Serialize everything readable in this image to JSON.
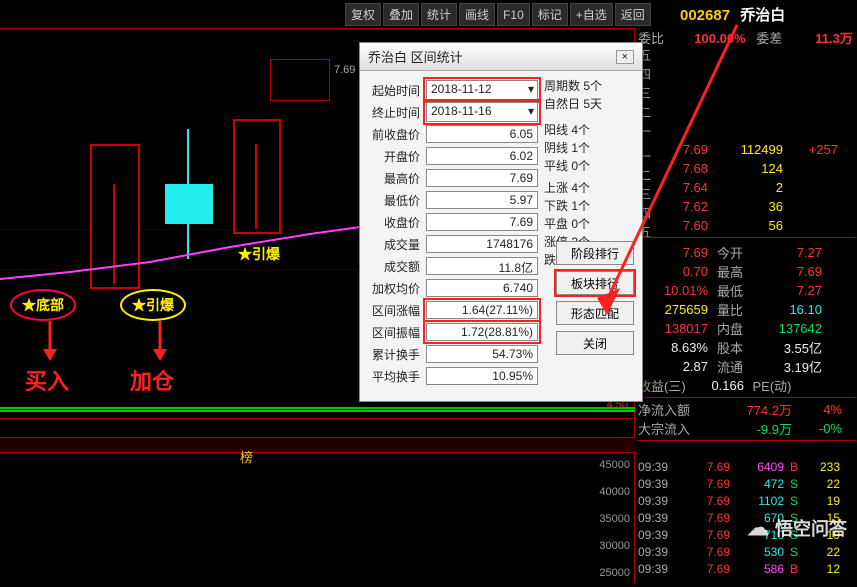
{
  "toolbar": {
    "items": [
      "复权",
      "叠加",
      "统计",
      "画线",
      "F10",
      "标记",
      "+自选",
      "返回"
    ]
  },
  "stock": {
    "code": "002687",
    "name": "乔治白"
  },
  "ratio": {
    "weibi_label": "委比",
    "weibi_val": "100.00%",
    "weicha_label": "委差",
    "weicha_val": "11.3万"
  },
  "chart": {
    "price_tag": "7.69",
    "annot_bottom": "★底部",
    "annot_ignite": "★引爆",
    "annot_ignite2": "★引爆",
    "buy": "买入",
    "add": "加仓",
    "right_price": "4.50",
    "bang": "榜"
  },
  "lower_scale": [
    "45000",
    "40000",
    "35000",
    "30000",
    "25000"
  ],
  "dialog": {
    "title": "乔治白 区间统计",
    "rows": {
      "start_label": "起始时间",
      "start_val": "2018-11-12",
      "end_label": "终止时间",
      "end_val": "2018-11-16",
      "prev_label": "前收盘价",
      "prev_val": "6.05",
      "open_label": "开盘价",
      "open_val": "6.02",
      "high_label": "最高价",
      "high_val": "7.69",
      "low_label": "最低价",
      "low_val": "5.97",
      "close_label": "收盘价",
      "close_val": "7.69",
      "vol_label": "成交量",
      "vol_val": "1748176",
      "amt_label": "成交额",
      "amt_val": "11.8亿",
      "avg_label": "加权均价",
      "avg_val": "6.740",
      "range_label": "区间涨幅",
      "range_val": "1.64(27.11%)",
      "amp_label": "区间振幅",
      "amp_val": "1.72(28.81%)",
      "turn_label": "累计换手",
      "turn_val": "54.73%",
      "avgturn_label": "平均换手",
      "avgturn_val": "10.95%"
    },
    "side": {
      "cycle": "周期数 5个",
      "days": "自然日 5天",
      "yang": "阳线 4个",
      "yin": "阴线 1个",
      "ping": "平线 0个",
      "up": "上涨 4个",
      "down": "下跌 1个",
      "flat": "平盘 0个",
      "limup": "涨停 3个",
      "limdn": "跌    0个"
    },
    "buttons": {
      "stage": "阶段排行",
      "block": "板块排行",
      "pattern": "形态匹配",
      "close": "关闭"
    }
  },
  "level5_labels": [
    "五",
    "四",
    "三",
    "二",
    "一",
    "一",
    "二",
    "三",
    "四",
    "五"
  ],
  "asks": [
    {
      "p": "7.69",
      "v": "112499",
      "chg": "+257"
    },
    {
      "p": "7.68",
      "v": "124",
      "chg": ""
    },
    {
      "p": "7.64",
      "v": "2",
      "chg": ""
    },
    {
      "p": "7.62",
      "v": "36",
      "chg": ""
    },
    {
      "p": "7.60",
      "v": "56",
      "chg": ""
    }
  ],
  "summary": {
    "r1": {
      "a": "7.69",
      "al": "今开",
      "b": "7.27"
    },
    "r2": {
      "a": "0.70",
      "al": "最高",
      "b": "7.69"
    },
    "r3": {
      "a": "10.01%",
      "al": "最低",
      "b": "7.27"
    },
    "r4": {
      "a": "275659",
      "al": "量比",
      "b": "16.10"
    },
    "r5": {
      "a": "138017",
      "al": "内盘",
      "b": "137642"
    },
    "r6": {
      "a": "8.63%",
      "al": "股本",
      "b": "3.55亿"
    },
    "r7": {
      "a": "2.87",
      "al": "流通",
      "b": "3.19亿"
    },
    "r8": {
      "lbl": "收益(三)",
      "a": "0.166",
      "bl": "PE(动)",
      "b": ""
    },
    "r9": {
      "lbl": "净流入额",
      "a": "774.2万",
      "b": "4%"
    },
    "r10": {
      "lbl": "大宗流入",
      "a": "-9.9万",
      "b": "-0%"
    }
  },
  "ticks": [
    {
      "t": "09:39",
      "p": "7.69",
      "v": "6409",
      "f": "B",
      "n": "233"
    },
    {
      "t": "09:39",
      "p": "7.69",
      "v": "472",
      "f": "S",
      "n": "22"
    },
    {
      "t": "09:39",
      "p": "7.69",
      "v": "1102",
      "f": "S",
      "n": "19"
    },
    {
      "t": "09:39",
      "p": "7.69",
      "v": "670",
      "f": "S",
      "n": "15"
    },
    {
      "t": "09:39",
      "p": "7.69",
      "v": "710",
      "f": "S",
      "n": "19"
    },
    {
      "t": "09:39",
      "p": "7.69",
      "v": "530",
      "f": "S",
      "n": "22"
    },
    {
      "t": "09:39",
      "p": "7.69",
      "v": "586",
      "f": "B",
      "n": "12"
    }
  ],
  "watermark": "悟空问答"
}
